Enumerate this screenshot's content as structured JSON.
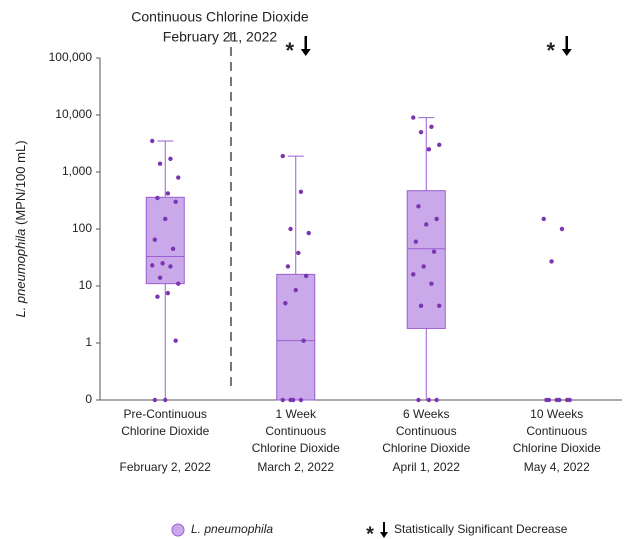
{
  "chart_data": {
    "type": "box",
    "ylabel": [
      "L. pneumophila",
      "(MPN/100 mL)"
    ],
    "log_scale": true,
    "ylim": [
      0,
      100000
    ],
    "yticks": [
      0,
      1,
      10,
      100,
      {
        "value": 1000,
        "label": "1,000"
      },
      {
        "value": 10000,
        "label": "10,000"
      },
      {
        "value": 100000,
        "label": "100,000"
      }
    ],
    "categories": [
      [
        "Pre-Continuous",
        "Chlorine Dioxide"
      ],
      [
        "1 Week",
        "Continuous",
        "Chlorine Dioxide"
      ],
      [
        "6 Weeks",
        "Continuous",
        "Chlorine Dioxide"
      ],
      [
        "10 Weeks",
        "Continuous",
        "Chlorine Dioxide"
      ]
    ],
    "dates": [
      "February 2, 2022",
      "March 2, 2022",
      "April 1, 2022",
      "May 4, 2022"
    ],
    "divider_annotation": [
      "Continuous Chlorine Dioxide",
      "February 21, 2022"
    ],
    "sig_marker": "*",
    "significant": [
      false,
      true,
      false,
      true
    ],
    "box_color": "#c9a9ea",
    "edge_color": "#9a5fd0",
    "point_color": "#7a35b0",
    "boxes": [
      {
        "q1": 11,
        "median": 33,
        "q3": 360,
        "whisker_low": 0,
        "whisker_high": 3500,
        "points": [
          3500,
          1700,
          1400,
          800,
          420,
          350,
          300,
          150,
          65,
          45,
          25,
          23,
          22,
          14,
          11,
          7.5,
          6.5,
          1.1,
          0,
          0
        ]
      },
      {
        "q1": 0,
        "median": 1.1,
        "q3": 16,
        "whisker_low": 0,
        "whisker_high": 1900,
        "points": [
          1900,
          450,
          100,
          85,
          38,
          22,
          15,
          8.5,
          5,
          1.1,
          0,
          0,
          0,
          0
        ]
      },
      {
        "q1": 1.8,
        "median": 45,
        "q3": 470,
        "whisker_low": 0,
        "whisker_high": 9000,
        "points": [
          9000,
          6200,
          5000,
          3000,
          2500,
          250,
          150,
          120,
          60,
          40,
          22,
          16,
          11,
          4.5,
          4.5,
          0,
          0,
          0
        ]
      },
      {
        "q1": null,
        "median": null,
        "q3": null,
        "whisker_low": null,
        "whisker_high": null,
        "points": [
          150,
          100,
          27,
          0,
          0,
          0,
          0,
          0,
          0
        ]
      }
    ],
    "legend": {
      "marker_label": "L. pneumophila",
      "sig_label": "Statistically Significant Decrease"
    }
  }
}
